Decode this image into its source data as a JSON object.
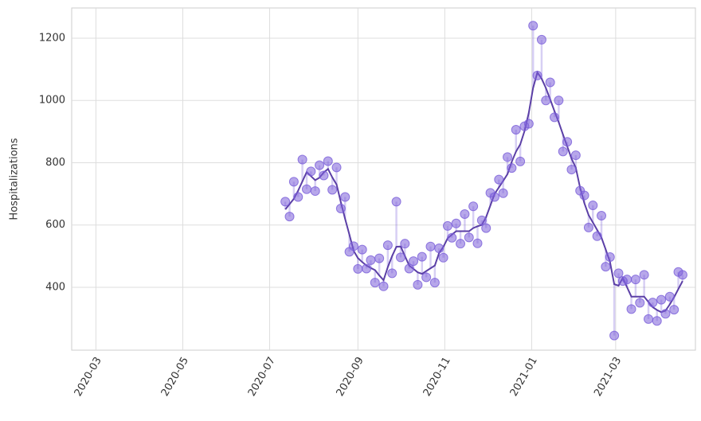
{
  "chart_data": {
    "type": "scatter",
    "ylabel": "Hospitalizations",
    "x": [
      133,
      136,
      139,
      142,
      145,
      148,
      151,
      154,
      157,
      160,
      163,
      166,
      169,
      172,
      175,
      178,
      181,
      184,
      187,
      190,
      193,
      196,
      199,
      202,
      205,
      208,
      211,
      214,
      217,
      220,
      223,
      226,
      229,
      232,
      235,
      238,
      241,
      244,
      247,
      250,
      253,
      256,
      259,
      262,
      265,
      268,
      271,
      274,
      277,
      280,
      283,
      286,
      289,
      292,
      295,
      298,
      301,
      304,
      307,
      310,
      313,
      316,
      319,
      322,
      325,
      328,
      331,
      334,
      337,
      340,
      343,
      346,
      349,
      352,
      355,
      358,
      361,
      364,
      367,
      370,
      373,
      376,
      379,
      382,
      385,
      388,
      391,
      394,
      397,
      400,
      403,
      406,
      409,
      412
    ],
    "values": [
      675,
      627,
      739,
      690,
      810,
      715,
      772,
      709,
      792,
      759,
      805,
      713,
      785,
      653,
      690,
      514,
      532,
      459,
      521,
      460,
      487,
      415,
      493,
      403,
      535,
      445,
      675,
      496,
      540,
      460,
      484,
      408,
      498,
      432,
      531,
      415,
      525,
      495,
      597,
      559,
      605,
      540,
      635,
      560,
      660,
      541,
      615,
      590,
      703,
      690,
      746,
      702,
      818,
      783,
      906,
      804,
      917,
      925,
      1240,
      1080,
      1195,
      1000,
      1058,
      946,
      1000,
      836,
      867,
      778,
      824,
      710,
      695,
      592,
      663,
      564,
      630,
      466,
      497,
      245,
      445,
      420,
      425,
      330,
      425,
      350,
      440,
      298,
      351,
      292,
      360,
      315,
      370,
      328,
      449,
      440
    ],
    "trend": [
      650,
      667,
      684,
      710,
      740,
      770,
      757,
      744,
      752,
      769,
      780,
      753,
      730,
      673,
      620,
      569,
      517,
      494,
      481,
      470,
      462,
      455,
      438,
      423,
      465,
      500,
      530,
      531,
      500,
      470,
      459,
      448,
      443,
      452,
      461,
      470,
      510,
      530,
      557,
      569,
      580,
      580,
      580,
      580,
      590,
      596,
      600,
      625,
      663,
      700,
      721,
      742,
      763,
      803,
      836,
      859,
      902,
      960,
      1040,
      1090,
      1070,
      1040,
      1003,
      966,
      930,
      891,
      852,
      813,
      784,
      720,
      670,
      632,
      608,
      584,
      560,
      521,
      482,
      410,
      405,
      430,
      400,
      370,
      370,
      370,
      370,
      353,
      336,
      327,
      320,
      325,
      345,
      368,
      394,
      420
    ],
    "color": "#7b5fd9",
    "trend_color": "#5b3fa6",
    "xlim": [
      -17,
      421
    ],
    "xticks": [
      {
        "value": 0,
        "label": "2020-03"
      },
      {
        "value": 61,
        "label": "2020-05"
      },
      {
        "value": 122,
        "label": "2020-07"
      },
      {
        "value": 184,
        "label": "2020-09"
      },
      {
        "value": 245,
        "label": "2020-11"
      },
      {
        "value": 306,
        "label": "2021-01"
      },
      {
        "value": 365,
        "label": "2021-03"
      }
    ],
    "ylim": [
      198,
      1297
    ],
    "yticks": [
      400,
      600,
      800,
      1000,
      1200
    ],
    "grid": true
  }
}
